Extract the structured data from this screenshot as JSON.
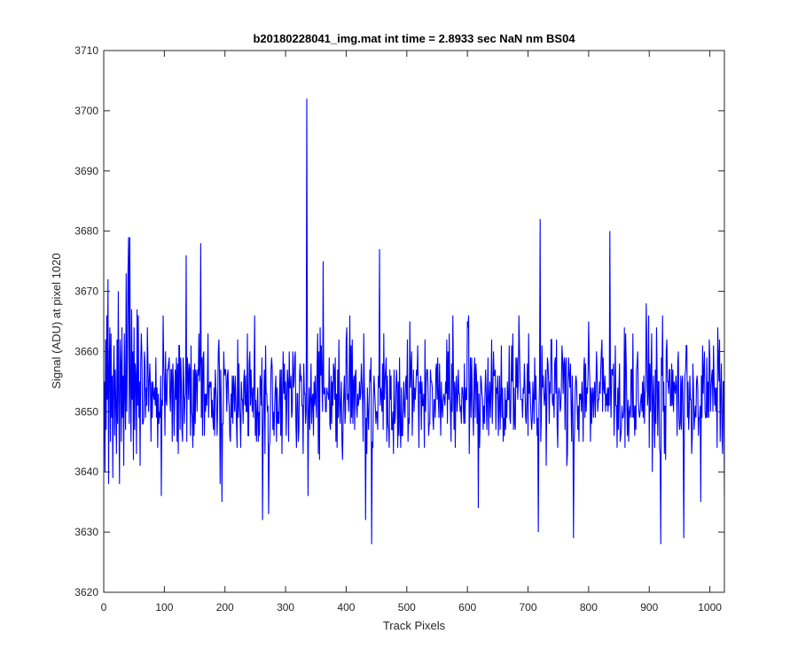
{
  "chart_data": {
    "type": "line",
    "title": "b20180228041_img.mat int time = 2.8933 sec  NaN nm BS04",
    "xlabel": "Track Pixels",
    "ylabel": "Signal (ADU) at pixel 1020",
    "xlim": [
      0,
      1024
    ],
    "ylim": [
      3620,
      3710
    ],
    "xticks": [
      0,
      100,
      200,
      300,
      400,
      500,
      600,
      700,
      800,
      900,
      1000
    ],
    "yticks": [
      3620,
      3630,
      3640,
      3650,
      3660,
      3670,
      3680,
      3690,
      3700,
      3710
    ],
    "grid": false,
    "series": [
      {
        "color": "#0000ff",
        "x_start": 1,
        "x_step": 1,
        "y": [
          3655,
          3640,
          3662,
          3647,
          3666,
          3652,
          3672,
          3638,
          3657,
          3664,
          3645,
          3663,
          3649,
          3665,
          3639,
          3656,
          3661,
          3646,
          3657,
          3651,
          3643,
          3662,
          3648,
          3670,
          3652,
          3638,
          3661,
          3658,
          3645,
          3664,
          3649,
          3656,
          3641,
          3663,
          3653,
          3647,
          3673,
          3650,
          3659,
          3637,
          3679,
          3648,
          3662,
          3654,
          3645,
          3667,
          3652,
          3660,
          3642,
          3664,
          3647,
          3658,
          3656,
          3643,
          3661,
          3651,
          3666,
          3649,
          3655,
          3641
        ],
        "landmarks": [
          [
            14,
            3656
          ],
          [
            27,
            3662
          ],
          [
            40,
            3673
          ],
          [
            43,
            3679
          ],
          [
            55,
            3667
          ],
          [
            95,
            3636
          ],
          [
            136,
            3676
          ],
          [
            160,
            3678
          ],
          [
            192,
            3638
          ],
          [
            195,
            3635
          ],
          [
            262,
            3632
          ],
          [
            272,
            3633
          ],
          [
            322,
            3647
          ],
          [
            335,
            3702
          ],
          [
            337,
            3636
          ],
          [
            362,
            3675
          ],
          [
            400,
            3662
          ],
          [
            432,
            3632
          ],
          [
            442,
            3628
          ],
          [
            455,
            3677
          ],
          [
            530,
            3662
          ],
          [
            618,
            3634
          ],
          [
            640,
            3662
          ],
          [
            685,
            3666
          ],
          [
            717,
            3630
          ],
          [
            720,
            3682
          ],
          [
            775,
            3629
          ],
          [
            800,
            3665
          ],
          [
            835,
            3680
          ],
          [
            895,
            3668
          ],
          [
            919,
            3628
          ],
          [
            957,
            3629
          ],
          [
            985,
            3635
          ],
          [
            1024,
            3636
          ]
        ]
      }
    ]
  }
}
